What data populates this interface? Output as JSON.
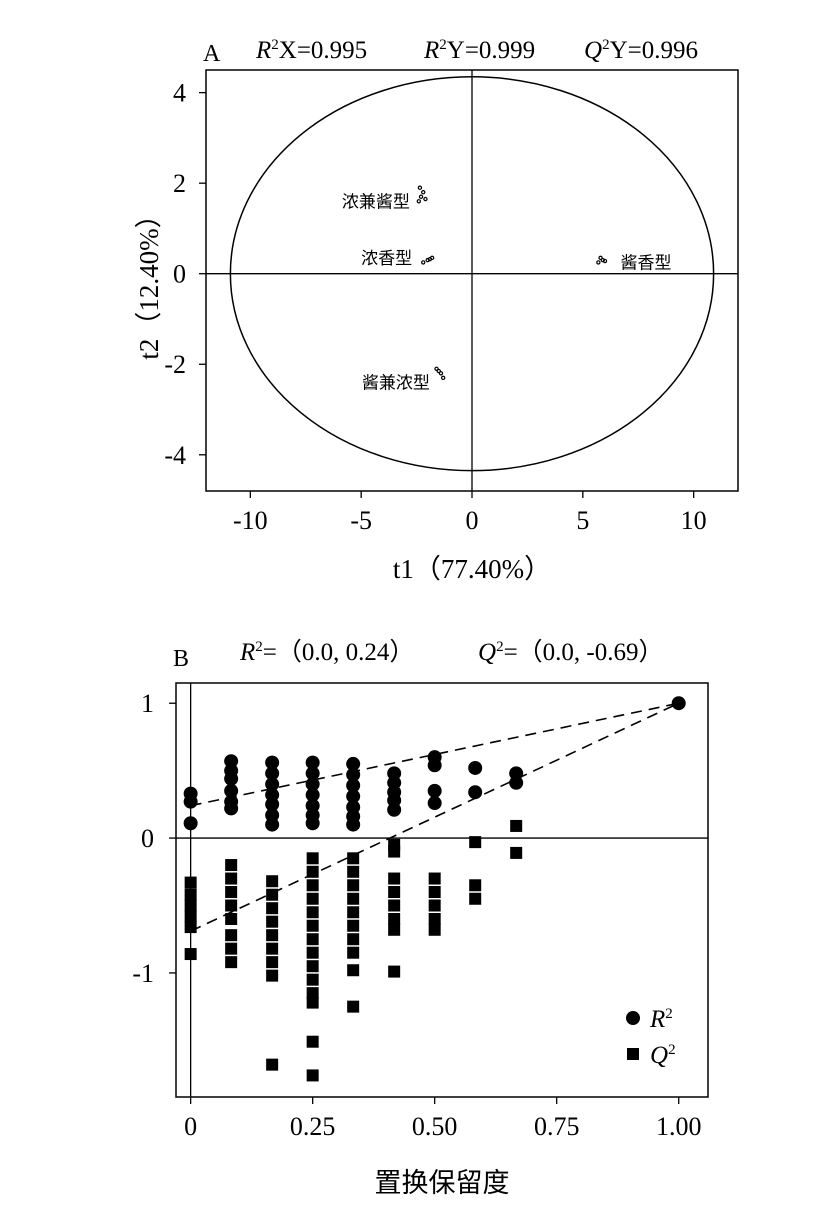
{
  "chart_data": [
    {
      "type": "scatter",
      "panel_label": "A",
      "stats": [
        {
          "sym": "R",
          "sup": "2",
          "rest": "X=0.995"
        },
        {
          "sym": "R",
          "sup": "2",
          "rest": "Y=0.999"
        },
        {
          "sym": "Q",
          "sup": "2",
          "rest": "Y=0.996"
        }
      ],
      "xlabel": "t1（77.40%）",
      "ylabel": "t2（12.40%）",
      "xlim": [
        -12,
        12
      ],
      "ylim": [
        -4.8,
        4.5
      ],
      "xticks": [
        "-10",
        "-5",
        "0",
        "5",
        "10"
      ],
      "yticks": [
        "4",
        "2",
        "0",
        "-2",
        "-4"
      ],
      "ellipse": {
        "cx": 0,
        "cy": 0,
        "rx": 10.9,
        "ry": 4.35
      },
      "groups": [
        {
          "name": "浓兼酱型",
          "points": [
            [
              -2.4,
              1.6
            ],
            [
              -2.2,
              1.8
            ],
            [
              -2.3,
              1.7
            ],
            [
              -2.1,
              1.65
            ],
            [
              -2.35,
              1.9
            ]
          ]
        },
        {
          "name": "浓香型",
          "points": [
            [
              -2.2,
              0.25
            ],
            [
              -2.0,
              0.3
            ],
            [
              -1.8,
              0.35
            ],
            [
              -1.9,
              0.32
            ]
          ]
        },
        {
          "name": "酱香型",
          "points": [
            [
              5.7,
              0.25
            ],
            [
              5.9,
              0.3
            ],
            [
              5.8,
              0.35
            ],
            [
              6.0,
              0.28
            ]
          ]
        },
        {
          "name": "酱兼浓型",
          "points": [
            [
              -1.6,
              -2.1
            ],
            [
              -1.4,
              -2.2
            ],
            [
              -1.3,
              -2.3
            ],
            [
              -1.5,
              -2.15
            ]
          ]
        }
      ]
    },
    {
      "type": "scatter",
      "panel_label": "B",
      "stats": [
        {
          "sym": "R",
          "sup": "2",
          "rest": "=（0.0, 0.24）"
        },
        {
          "sym": "Q",
          "sup": "2",
          "rest": "=（0.0, -0.69）"
        }
      ],
      "xlabel": "置换保留度",
      "ylabel": "",
      "xlim": [
        -0.03,
        1.06
      ],
      "ylim": [
        -1.92,
        1.15
      ],
      "xticks": [
        "0",
        "0.25",
        "0.50",
        "0.75",
        "1.00"
      ],
      "yticks": [
        "1",
        "0",
        "-1"
      ],
      "legend": [
        "R2",
        "Q2"
      ],
      "legend_position": "bottom-right",
      "series": [
        {
          "name": "R2",
          "marker": "circle",
          "points": [
            [
              0,
              0.33
            ],
            [
              0,
              0.27
            ],
            [
              0,
              0.11
            ],
            [
              0.083,
              0.57
            ],
            [
              0.083,
              0.5
            ],
            [
              0.083,
              0.44
            ],
            [
              0.083,
              0.35
            ],
            [
              0.083,
              0.27
            ],
            [
              0.083,
              0.22
            ],
            [
              0.167,
              0.56
            ],
            [
              0.167,
              0.48
            ],
            [
              0.167,
              0.4
            ],
            [
              0.167,
              0.32
            ],
            [
              0.167,
              0.25
            ],
            [
              0.167,
              0.17
            ],
            [
              0.167,
              0.1
            ],
            [
              0.25,
              0.56
            ],
            [
              0.25,
              0.48
            ],
            [
              0.25,
              0.4
            ],
            [
              0.25,
              0.32
            ],
            [
              0.25,
              0.24
            ],
            [
              0.25,
              0.17
            ],
            [
              0.25,
              0.11
            ],
            [
              0.333,
              0.55
            ],
            [
              0.333,
              0.47
            ],
            [
              0.333,
              0.39
            ],
            [
              0.333,
              0.31
            ],
            [
              0.333,
              0.23
            ],
            [
              0.333,
              0.16
            ],
            [
              0.333,
              0.1
            ],
            [
              0.417,
              0.48
            ],
            [
              0.417,
              0.41
            ],
            [
              0.417,
              0.34
            ],
            [
              0.417,
              0.28
            ],
            [
              0.417,
              0.21
            ],
            [
              0.5,
              0.6
            ],
            [
              0.5,
              0.54
            ],
            [
              0.5,
              0.35
            ],
            [
              0.5,
              0.26
            ],
            [
              0.583,
              0.52
            ],
            [
              0.583,
              0.34
            ],
            [
              0.667,
              0.48
            ],
            [
              0.667,
              0.41
            ],
            [
              1.0,
              1.0
            ]
          ]
        },
        {
          "name": "Q2",
          "marker": "square",
          "points": [
            [
              0,
              -0.33
            ],
            [
              0,
              -0.42
            ],
            [
              0,
              -0.5
            ],
            [
              0,
              -0.58
            ],
            [
              0,
              -0.66
            ],
            [
              0,
              -0.86
            ],
            [
              0.083,
              -0.2
            ],
            [
              0.083,
              -0.3
            ],
            [
              0.083,
              -0.4
            ],
            [
              0.083,
              -0.5
            ],
            [
              0.083,
              -0.6
            ],
            [
              0.083,
              -0.72
            ],
            [
              0.083,
              -0.82
            ],
            [
              0.083,
              -0.92
            ],
            [
              0.167,
              -0.32
            ],
            [
              0.167,
              -0.42
            ],
            [
              0.167,
              -0.52
            ],
            [
              0.167,
              -0.62
            ],
            [
              0.167,
              -0.72
            ],
            [
              0.167,
              -0.82
            ],
            [
              0.167,
              -0.92
            ],
            [
              0.167,
              -1.02
            ],
            [
              0.167,
              -1.68
            ],
            [
              0.25,
              -0.15
            ],
            [
              0.25,
              -0.25
            ],
            [
              0.25,
              -0.35
            ],
            [
              0.25,
              -0.45
            ],
            [
              0.25,
              -0.55
            ],
            [
              0.25,
              -0.65
            ],
            [
              0.25,
              -0.75
            ],
            [
              0.25,
              -0.85
            ],
            [
              0.25,
              -0.95
            ],
            [
              0.25,
              -1.05
            ],
            [
              0.25,
              -1.15
            ],
            [
              0.25,
              -1.22
            ],
            [
              0.25,
              -1.51
            ],
            [
              0.25,
              -1.76
            ],
            [
              0.333,
              -0.15
            ],
            [
              0.333,
              -0.25
            ],
            [
              0.333,
              -0.35
            ],
            [
              0.333,
              -0.45
            ],
            [
              0.333,
              -0.55
            ],
            [
              0.333,
              -0.65
            ],
            [
              0.333,
              -0.75
            ],
            [
              0.333,
              -0.85
            ],
            [
              0.333,
              -0.98
            ],
            [
              0.333,
              -1.25
            ],
            [
              0.417,
              -0.05
            ],
            [
              0.417,
              -0.1
            ],
            [
              0.417,
              -0.3
            ],
            [
              0.417,
              -0.4
            ],
            [
              0.417,
              -0.5
            ],
            [
              0.417,
              -0.6
            ],
            [
              0.417,
              -0.68
            ],
            [
              0.417,
              -0.99
            ],
            [
              0.5,
              -0.3
            ],
            [
              0.5,
              -0.4
            ],
            [
              0.5,
              -0.5
            ],
            [
              0.5,
              -0.6
            ],
            [
              0.5,
              -0.68
            ],
            [
              0.583,
              -0.03
            ],
            [
              0.583,
              -0.35
            ],
            [
              0.583,
              -0.45
            ],
            [
              0.667,
              0.09
            ],
            [
              0.667,
              -0.11
            ]
          ]
        }
      ],
      "trend_lines": [
        {
          "name": "R2",
          "from": [
            0,
            0.24
          ],
          "to": [
            1.0,
            1.0
          ]
        },
        {
          "name": "Q2",
          "from": [
            0,
            -0.69
          ],
          "to": [
            1.0,
            1.0
          ]
        }
      ]
    }
  ]
}
